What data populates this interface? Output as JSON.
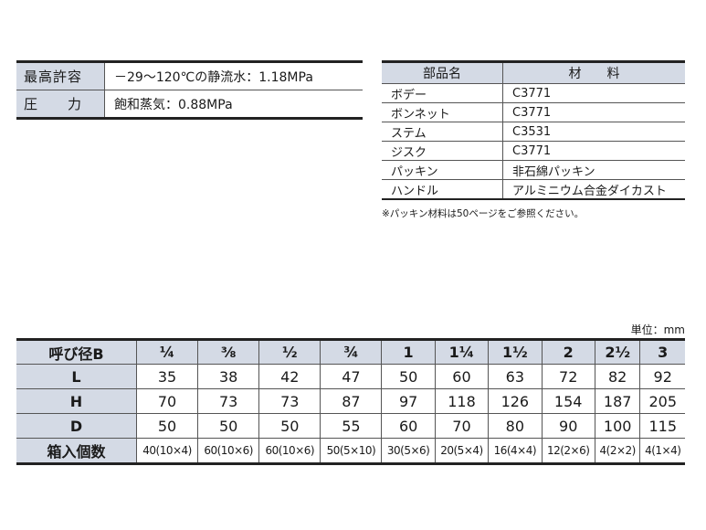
{
  "pressure": {
    "label_1": "最高許容",
    "label_2": "圧　　力",
    "water": "－29～120℃の静流水：1.18MPa",
    "steam": "飽和蒸気：0.88MPa"
  },
  "parts": {
    "headers": [
      "部品名",
      "材　　料"
    ],
    "rows": [
      [
        "ボデー",
        "C3771"
      ],
      [
        "ボンネット",
        "C3771"
      ],
      [
        "ステム",
        "C3531"
      ],
      [
        "ジスク",
        "C3771"
      ],
      [
        "パッキン",
        "非石綿パッキン"
      ],
      [
        "ハンドル",
        "アルミニウム合金ダイカスト"
      ]
    ],
    "note": "※パッキン材料は50ページをご参照ください。"
  },
  "sizes": {
    "unit": "単位：mm",
    "header_label": "呼び径B",
    "columns": [
      "¼",
      "⅜",
      "½",
      "¾",
      "1",
      "1¼",
      "1½",
      "2",
      "2½",
      "3"
    ],
    "rows": [
      {
        "label": "L",
        "values": [
          "35",
          "38",
          "42",
          "47",
          "50",
          "60",
          "63",
          "72",
          "82",
          "92"
        ]
      },
      {
        "label": "H",
        "values": [
          "70",
          "73",
          "73",
          "87",
          "97",
          "118",
          "126",
          "154",
          "187",
          "205"
        ]
      },
      {
        "label": "D",
        "values": [
          "50",
          "50",
          "50",
          "55",
          "60",
          "70",
          "80",
          "90",
          "100",
          "115"
        ]
      },
      {
        "label": "箱入個数",
        "values": [
          "40(10×4)",
          "60(10×6)",
          "60(10×6)",
          "50(5×10)",
          "30(5×6)",
          "20(5×4)",
          "16(4×4)",
          "12(2×6)",
          "4(2×2)",
          "4(1×4)"
        ]
      }
    ]
  }
}
